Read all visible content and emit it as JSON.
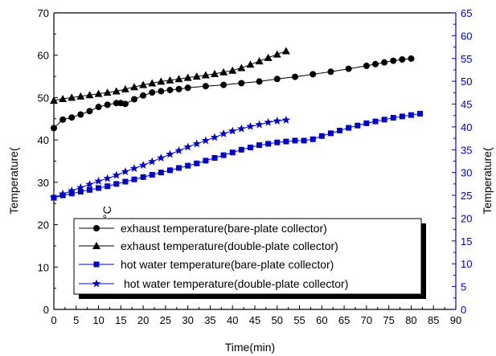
{
  "chart_data": {
    "type": "line",
    "xlabel": "Time(min)",
    "ylabel_left": "Temperature(",
    "ylabel_right": "Temperature(",
    "unit_degree": "°C",
    "xlim": [
      0,
      90
    ],
    "ylim_left": [
      0,
      70
    ],
    "ylim_right": [
      0,
      65
    ],
    "x_ticks": [
      0,
      5,
      10,
      15,
      20,
      25,
      30,
      35,
      40,
      45,
      50,
      55,
      60,
      65,
      70,
      75,
      80,
      85,
      90
    ],
    "y_left_ticks": [
      0,
      10,
      20,
      30,
      40,
      50,
      60,
      70
    ],
    "y_right_ticks": [
      0,
      5,
      10,
      15,
      20,
      25,
      30,
      35,
      40,
      45,
      50,
      55,
      60,
      65
    ],
    "grid": false,
    "legend_position": "lower-left",
    "colors": {
      "black": "#000000",
      "blue": "#0000cc"
    },
    "series": [
      {
        "name": "exhaust temperature(bare-plate collector)",
        "axis": "left",
        "marker": "circle",
        "color": "#000000",
        "x": [
          0,
          2,
          4,
          6,
          8,
          10,
          12,
          14,
          15,
          16,
          18,
          20,
          22,
          24,
          26,
          28,
          30,
          34,
          38,
          42,
          46,
          50,
          54,
          58,
          62,
          66,
          70,
          72,
          74,
          76,
          78,
          80
        ],
        "y": [
          42.8,
          44.8,
          45.3,
          46.0,
          46.8,
          47.8,
          48.3,
          48.7,
          48.7,
          48.5,
          49.6,
          50.5,
          51.2,
          51.5,
          51.8,
          52.0,
          52.3,
          52.7,
          53.0,
          53.4,
          53.8,
          54.4,
          54.9,
          55.5,
          56.1,
          56.8,
          57.5,
          57.9,
          58.3,
          58.7,
          59.0,
          59.2
        ]
      },
      {
        "name": "exhaust temperature(double-plate collector)",
        "axis": "left",
        "marker": "triangle",
        "color": "#000000",
        "x": [
          0,
          2,
          4,
          6,
          8,
          10,
          12,
          14,
          16,
          18,
          20,
          22,
          24,
          26,
          28,
          30,
          32,
          34,
          36,
          38,
          40,
          42,
          44,
          46,
          48,
          50,
          52
        ],
        "y": [
          49.3,
          49.7,
          50.0,
          50.3,
          50.6,
          50.9,
          51.2,
          51.5,
          52.0,
          52.5,
          53.0,
          53.4,
          53.8,
          54.1,
          54.4,
          54.7,
          55.0,
          55.3,
          55.6,
          56.0,
          56.4,
          57.0,
          57.8,
          58.6,
          59.4,
          60.2,
          61.0
        ]
      },
      {
        "name": "hot water temperature(bare-plate collector)",
        "axis": "right",
        "marker": "square",
        "color": "#0000cc",
        "x": [
          0,
          2,
          4,
          6,
          8,
          10,
          12,
          14,
          16,
          18,
          20,
          22,
          24,
          26,
          28,
          30,
          32,
          34,
          36,
          38,
          40,
          42,
          44,
          46,
          48,
          50,
          52,
          54,
          56,
          58,
          60,
          62,
          64,
          66,
          68,
          70,
          72,
          74,
          76,
          78,
          80,
          82
        ],
        "y": [
          24.5,
          25.0,
          25.4,
          25.8,
          26.2,
          26.6,
          27.0,
          27.5,
          28.0,
          28.5,
          29.0,
          29.5,
          30.0,
          30.5,
          31.0,
          31.5,
          32.0,
          32.6,
          33.2,
          33.8,
          34.4,
          35.0,
          35.5,
          36.0,
          36.3,
          36.6,
          36.8,
          37.0,
          37.0,
          37.3,
          38.0,
          38.6,
          39.2,
          39.8,
          40.3,
          40.8,
          41.2,
          41.6,
          42.0,
          42.3,
          42.6,
          42.9
        ]
      },
      {
        "name": "hot water temperature(double-plate collector)",
        "axis": "right",
        "marker": "star",
        "color": "#0000cc",
        "x": [
          0,
          2,
          4,
          6,
          8,
          10,
          12,
          14,
          16,
          18,
          20,
          22,
          24,
          26,
          28,
          30,
          32,
          34,
          36,
          38,
          40,
          42,
          44,
          46,
          48,
          50,
          52
        ],
        "y": [
          24.5,
          25.3,
          26.0,
          26.7,
          27.4,
          28.1,
          28.7,
          29.4,
          30.2,
          30.9,
          31.6,
          32.4,
          33.2,
          34.0,
          34.8,
          35.6,
          36.3,
          37.0,
          37.7,
          38.5,
          39.1,
          39.6,
          40.1,
          40.5,
          41.0,
          41.3,
          41.5
        ]
      }
    ]
  }
}
